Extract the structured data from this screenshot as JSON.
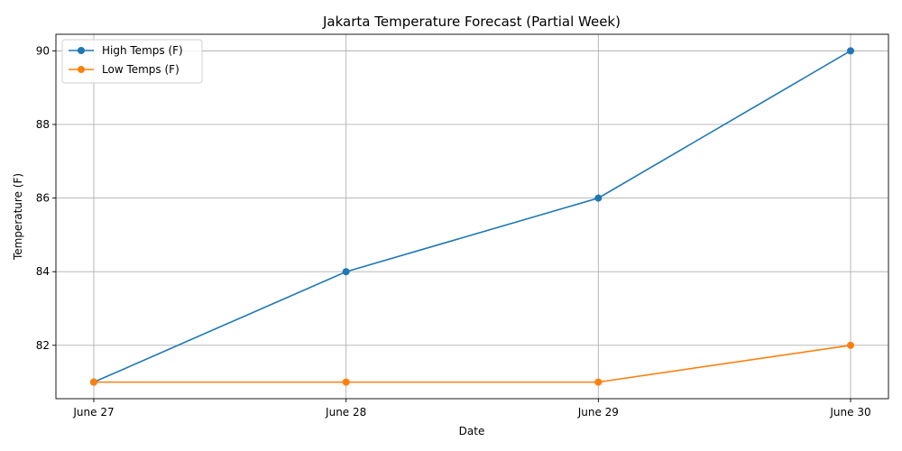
{
  "chart_data": {
    "type": "line",
    "title": "Jakarta Temperature Forecast (Partial Week)",
    "xlabel": "Date",
    "ylabel": "Temperature (F)",
    "categories": [
      "June 27",
      "June 28",
      "June 29",
      "June 30"
    ],
    "series": [
      {
        "name": "High Temps (F)",
        "values": [
          81,
          84,
          86,
          90
        ],
        "color": "#1f77b4"
      },
      {
        "name": "Low Temps (F)",
        "values": [
          81,
          81,
          81,
          82
        ],
        "color": "#ff7f0e"
      }
    ],
    "ylim": [
      80.55,
      90.45
    ],
    "yticks": [
      82,
      84,
      86,
      88,
      90
    ],
    "grid": true,
    "legend": "top-left"
  }
}
